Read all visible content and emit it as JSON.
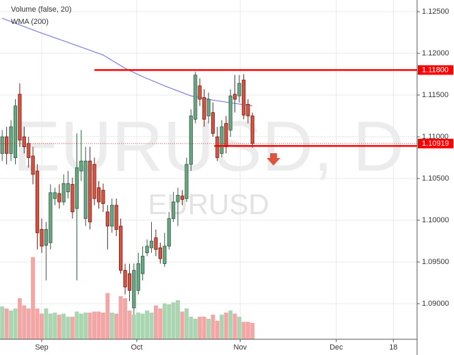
{
  "chart_data": {
    "type": "candlestick",
    "symbol_watermark": "EURUSD, D",
    "symbol_label": "EURUSD",
    "legend": [
      "Volume (false, 20)",
      "WMA (200)"
    ],
    "xlim": [
      -0.5,
      94.5
    ],
    "xticks": [
      {
        "value": 9,
        "label": "Sep"
      },
      {
        "value": 30.65,
        "label": "Oct"
      },
      {
        "value": 54.2,
        "label": "Nov"
      },
      {
        "value": 76.1,
        "label": "Dec"
      },
      {
        "value": 89.1,
        "label": "18"
      }
    ],
    "ylim": [
      1.08574,
      1.12639
    ],
    "yticks": [
      {
        "value": 1.125,
        "label": "1.12500"
      },
      {
        "value": 1.12,
        "label": "1.12000"
      },
      {
        "value": 1.115,
        "label": "1.11500"
      },
      {
        "value": 1.11,
        "label": "1.11000"
      },
      {
        "value": 1.105,
        "label": "1.10500"
      },
      {
        "value": 1.1,
        "label": "1.10000"
      },
      {
        "value": 1.095,
        "label": "1.09500"
      },
      {
        "value": 1.09,
        "label": "1.09000"
      }
    ],
    "grid": true,
    "up_color": "#6ba583",
    "down_color": "#d75442",
    "up_volume_color": "#a9d5b0",
    "down_volume_color": "#f2a6a6",
    "open": [
      1.108,
      1.11,
      1.108,
      1.1075,
      1.1151,
      1.11,
      1.1092,
      1.1077,
      1.1059,
      1.0989,
      1.097,
      1.0973,
      1.1026,
      1.1032,
      1.1022,
      1.1034,
      1.1043,
      1.1014,
      1.1059,
      1.1002,
      1.1071,
      1.1067,
      1.1039,
      1.1036,
      1.101,
      1.0993,
      1.1018,
      1.0993,
      1.094,
      1.0936,
      1.0895,
      1.0916,
      1.0936,
      1.0961,
      1.0967,
      1.0979,
      1.0967,
      1.0948,
      1.0969,
      1.1002,
      1.1022,
      1.1029,
      1.1026,
      1.1067,
      1.1121,
      1.1161,
      1.1147,
      1.1125,
      1.1129,
      1.11,
      1.108,
      1.1116,
      1.1108,
      1.1151,
      1.1149,
      1.1168,
      1.1139,
      1.1125
    ],
    "high": [
      1.1108,
      1.1112,
      1.112,
      1.1145,
      1.1164,
      1.1112,
      1.11,
      1.1088,
      1.1067,
      1.1002,
      1.0998,
      1.1043,
      1.1039,
      1.1043,
      1.1055,
      1.1059,
      1.1051,
      1.1104,
      1.1108,
      1.1088,
      1.1088,
      1.1075,
      1.1047,
      1.1044,
      1.1018,
      1.1026,
      1.1026,
      1.1002,
      1.0948,
      1.0948,
      1.0948,
      1.0961,
      1.0969,
      1.0977,
      1.0998,
      1.0989,
      1.0973,
      1.0985,
      1.101,
      1.1034,
      1.1039,
      1.1036,
      1.1075,
      1.1133,
      1.1178,
      1.117,
      1.1157,
      1.1153,
      1.1141,
      1.1112,
      1.112,
      1.1125,
      1.1157,
      1.1174,
      1.1174,
      1.1175,
      1.1145,
      1.1129
    ],
    "low": [
      1.1071,
      1.1067,
      1.1071,
      1.1067,
      1.1088,
      1.108,
      1.1063,
      1.1043,
      1.0965,
      1.0961,
      1.0928,
      1.0965,
      1.1018,
      1.1014,
      1.1018,
      1.1026,
      1.1002,
      1.0928,
      1.1047,
      1.0993,
      1.0989,
      1.1018,
      1.1014,
      1.101,
      1.0965,
      1.0985,
      1.0981,
      1.0936,
      1.0911,
      1.0903,
      1.0887,
      1.0911,
      1.0928,
      1.0957,
      1.0961,
      1.0957,
      1.0948,
      1.0944,
      1.0965,
      1.0998,
      1.0993,
      1.1018,
      1.1022,
      1.1059,
      1.1116,
      1.1137,
      1.1112,
      1.1116,
      1.11,
      1.1071,
      1.1075,
      1.108,
      1.11,
      1.1129,
      1.1141,
      1.1121,
      1.1116,
      1.1087
    ],
    "close": [
      1.11,
      1.108,
      1.1112,
      1.1137,
      1.1096,
      1.1088,
      1.1075,
      1.1055,
      1.0985,
      1.0969,
      1.0989,
      1.1033,
      1.1033,
      1.1022,
      1.1044,
      1.1044,
      1.101,
      1.1063,
      1.1071,
      1.1071,
      1.0998,
      1.1026,
      1.1022,
      1.102,
      1.0993,
      1.1018,
      1.0989,
      1.094,
      1.092,
      1.0916,
      1.094,
      1.0948,
      1.0957,
      1.0969,
      1.0975,
      1.0965,
      1.0954,
      1.0969,
      1.1002,
      1.1022,
      1.103,
      1.1025,
      1.1067,
      1.1125,
      1.1174,
      1.1145,
      1.1121,
      1.1145,
      1.1104,
      1.1075,
      1.1112,
      1.1088,
      1.1149,
      1.1145,
      1.1164,
      1.1126,
      1.1125,
      1.10919
    ],
    "volume_ylim": [
      0,
      100
    ],
    "volume": [
      32,
      30,
      28,
      30,
      40,
      33,
      30,
      80,
      30,
      25,
      30,
      25,
      26,
      24,
      25,
      22,
      22,
      27,
      25,
      26,
      26,
      27,
      27,
      26,
      45,
      26,
      25,
      42,
      40,
      28,
      24,
      26,
      25,
      28,
      26,
      33,
      30,
      35,
      34,
      36,
      38,
      27,
      30,
      22,
      20,
      22,
      22,
      20,
      24,
      18,
      24,
      26,
      28,
      25,
      22,
      17,
      17,
      16
    ],
    "wma": {
      "color": "#7b7be0",
      "x": [
        0,
        8,
        15,
        23,
        28,
        32,
        37,
        43,
        48,
        53,
        57
      ],
      "values": [
        1.1242,
        1.1226,
        1.1213,
        1.1198,
        1.1182,
        1.1172,
        1.1161,
        1.1149,
        1.1144,
        1.114,
        1.1137
      ]
    },
    "level_color": "#ff0000",
    "levels": [
      {
        "value": 1.118,
        "label": "1.11800",
        "from": 21
      },
      {
        "value": 1.1089,
        "from": 48.3
      }
    ],
    "last_price": {
      "value": 1.10919,
      "label": "1.10919"
    }
  }
}
